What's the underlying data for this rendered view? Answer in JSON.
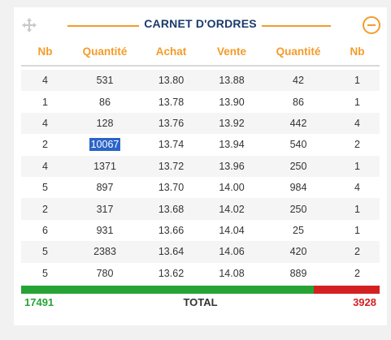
{
  "widget": {
    "title": "CARNET D'ORDRES",
    "move_icon": "move-arrows-icon",
    "collapse_icon": "minus-circle-icon",
    "accent_color": "#f39c2a",
    "title_color": "#1b3a6b"
  },
  "columns": [
    "Nb",
    "Quantité",
    "Achat",
    "Vente",
    "Quantité",
    "Nb"
  ],
  "rows": [
    {
      "nb_buy": "4",
      "qty_buy": "531",
      "bid": "13.80",
      "ask": "13.88",
      "qty_sell": "42",
      "nb_sell": "1"
    },
    {
      "nb_buy": "1",
      "qty_buy": "86",
      "bid": "13.78",
      "ask": "13.90",
      "qty_sell": "86",
      "nb_sell": "1"
    },
    {
      "nb_buy": "4",
      "qty_buy": "128",
      "bid": "13.76",
      "ask": "13.92",
      "qty_sell": "442",
      "nb_sell": "4"
    },
    {
      "nb_buy": "2",
      "qty_buy": "10067",
      "bid": "13.74",
      "ask": "13.94",
      "qty_sell": "540",
      "nb_sell": "2"
    },
    {
      "nb_buy": "4",
      "qty_buy": "1371",
      "bid": "13.72",
      "ask": "13.96",
      "qty_sell": "250",
      "nb_sell": "1"
    },
    {
      "nb_buy": "5",
      "qty_buy": "897",
      "bid": "13.70",
      "ask": "14.00",
      "qty_sell": "984",
      "nb_sell": "4"
    },
    {
      "nb_buy": "2",
      "qty_buy": "317",
      "bid": "13.68",
      "ask": "14.02",
      "qty_sell": "250",
      "nb_sell": "1"
    },
    {
      "nb_buy": "6",
      "qty_buy": "931",
      "bid": "13.66",
      "ask": "14.04",
      "qty_sell": "25",
      "nb_sell": "1"
    },
    {
      "nb_buy": "5",
      "qty_buy": "2383",
      "bid": "13.64",
      "ask": "14.06",
      "qty_sell": "420",
      "nb_sell": "2"
    },
    {
      "nb_buy": "5",
      "qty_buy": "780",
      "bid": "13.62",
      "ask": "14.08",
      "qty_sell": "889",
      "nb_sell": "2"
    }
  ],
  "selected_cell": {
    "row": 3,
    "field": "qty_buy"
  },
  "totals": {
    "label": "TOTAL",
    "buy": "17491",
    "sell": "3928",
    "buy_color": "#27a336",
    "sell_color": "#d42020",
    "buy_share": 0.8166
  }
}
